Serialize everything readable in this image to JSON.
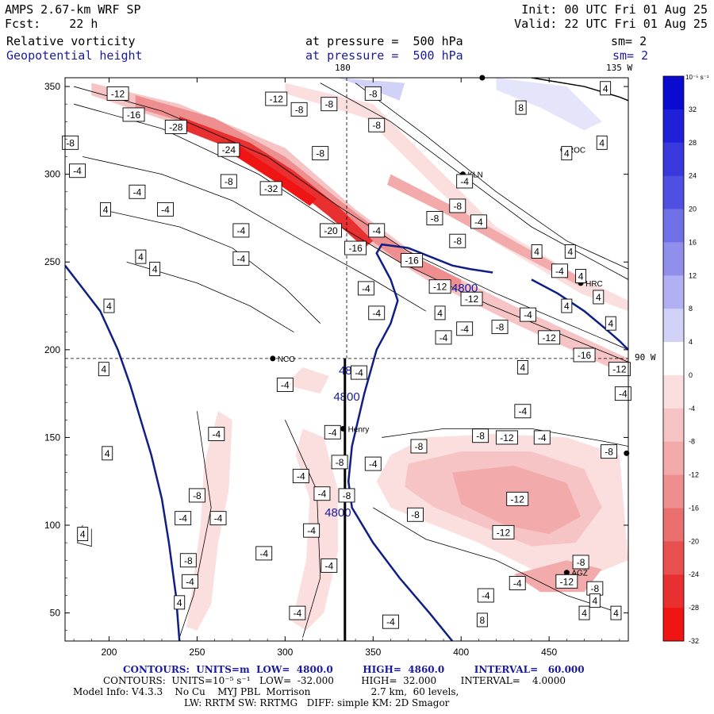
{
  "header": {
    "model": "AMPS 2.67-km WRF SP",
    "forecast": "Fcst:    22 h",
    "init": "Init: 00 UTC Fri 01 Aug 25",
    "valid": "Valid: 22 UTC Fri 01 Aug 25",
    "field1_name": "Relative vorticity",
    "field1_level": "at pressure =  500 hPa",
    "field1_sm": "sm= 2",
    "field2_name": "Geopotential height",
    "field2_level": "at pressure =  500 hPa",
    "field2_sm": "sm= 2"
  },
  "map_labels": {
    "lon_180": "180",
    "lon_135w": "135 W",
    "lon_90w": "90 W"
  },
  "stations": [
    {
      "id": "NCO",
      "x": 293,
      "y": 195
    },
    {
      "id": "Henry",
      "x": 333,
      "y": 155
    },
    {
      "id": "KLN",
      "x": 401,
      "y": 300
    },
    {
      "id": "HRC",
      "x": 468,
      "y": 238
    },
    {
      "id": "ROC",
      "x": 458,
      "y": 314
    },
    {
      "id": "AGZ",
      "x": 460,
      "y": 73
    },
    {
      "id": "",
      "x": 494,
      "y": 141
    },
    {
      "id": "",
      "x": 412,
      "y": 355
    }
  ],
  "colorbar": {
    "unit": "10^-5 s^-1",
    "ticks": [
      "32",
      "28",
      "24",
      "20",
      "16",
      "12",
      "8",
      "4",
      "0",
      "-4",
      "-8",
      "-12",
      "-16",
      "-20",
      "-24",
      "-28",
      "-32"
    ],
    "colors": [
      "#0b0bd0",
      "#2020d8",
      "#3838dc",
      "#5050e0",
      "#7070e6",
      "#9090ec",
      "#b0b0f2",
      "#d2d2f8",
      "#ffffff",
      "#fbdede",
      "#f6c4c4",
      "#f2aaaa",
      "#ee8e8e",
      "#ea7070",
      "#e85050",
      "#e83030",
      "#ef1515"
    ]
  },
  "chart_data": {
    "type": "heatmap",
    "title": "Relative vorticity / Geopotential height at 500 hPa",
    "x_ticks": [
      "200",
      "250",
      "300",
      "350",
      "400",
      "450"
    ],
    "y_ticks": [
      "50",
      "100",
      "150",
      "200",
      "250",
      "300",
      "350"
    ],
    "xlim": [
      175,
      495
    ],
    "ylim": [
      34,
      355
    ],
    "height_contours": {
      "units": "m",
      "low": "4800.0",
      "high": "4860.0",
      "interval": "60.000",
      "labels": [
        "4800",
        "4800",
        "4800",
        "4800"
      ],
      "lines": [
        [
          [
            175,
            248
          ],
          [
            185,
            235
          ],
          [
            195,
            222
          ],
          [
            205,
            200
          ],
          [
            212,
            180
          ],
          [
            218,
            160
          ],
          [
            224,
            140
          ],
          [
            230,
            115
          ],
          [
            234,
            90
          ],
          [
            238,
            60
          ],
          [
            240,
            34
          ]
        ],
        [
          [
            395,
            34
          ],
          [
            382,
            50
          ],
          [
            365,
            70
          ],
          [
            350,
            90
          ],
          [
            338,
            110
          ],
          [
            336,
            125
          ],
          [
            338,
            145
          ],
          [
            345,
            175
          ],
          [
            352,
            200
          ],
          [
            360,
            215
          ],
          [
            364,
            228
          ],
          [
            360,
            240
          ],
          [
            352,
            255
          ],
          [
            355,
            260
          ],
          [
            370,
            258
          ],
          [
            385,
            252
          ],
          [
            395,
            248
          ],
          [
            405,
            246
          ],
          [
            418,
            244
          ]
        ],
        [
          [
            440,
            240
          ],
          [
            455,
            232
          ],
          [
            470,
            222
          ],
          [
            482,
            212
          ],
          [
            490,
            205
          ],
          [
            495,
            200
          ]
        ]
      ]
    },
    "vorticity_contours": {
      "units": "10^-5 s^-1",
      "low": "-32.000",
      "high": "32.000",
      "interval": "4.0000",
      "labels": [
        {
          "v": "-12",
          "x": 205,
          "y": 346
        },
        {
          "v": "-16",
          "x": 214,
          "y": 334
        },
        {
          "v": "-28",
          "x": 238,
          "y": 327
        },
        {
          "v": "-12",
          "x": 295,
          "y": 343
        },
        {
          "v": "-8",
          "x": 308,
          "y": 337
        },
        {
          "v": "-8",
          "x": 325,
          "y": 340
        },
        {
          "v": "-8",
          "x": 350,
          "y": 346
        },
        {
          "v": "-8",
          "x": 352,
          "y": 328
        },
        {
          "v": "-8",
          "x": 178,
          "y": 318
        },
        {
          "v": "-24",
          "x": 268,
          "y": 314
        },
        {
          "v": "-8",
          "x": 320,
          "y": 312
        },
        {
          "v": "-4",
          "x": 182,
          "y": 302
        },
        {
          "v": "-4",
          "x": 216,
          "y": 290
        },
        {
          "v": "-8",
          "x": 268,
          "y": 296
        },
        {
          "v": "-32",
          "x": 292,
          "y": 292
        },
        {
          "v": "4",
          "x": 198,
          "y": 280
        },
        {
          "v": "-4",
          "x": 232,
          "y": 280
        },
        {
          "v": "-4",
          "x": 275,
          "y": 268
        },
        {
          "v": "-20",
          "x": 326,
          "y": 268
        },
        {
          "v": "-4",
          "x": 352,
          "y": 268
        },
        {
          "v": "-16",
          "x": 340,
          "y": 258
        },
        {
          "v": "-4",
          "x": 275,
          "y": 252
        },
        {
          "v": "4",
          "x": 218,
          "y": 253
        },
        {
          "v": "4",
          "x": 226,
          "y": 246
        },
        {
          "v": "-16",
          "x": 372,
          "y": 251
        },
        {
          "v": "-12",
          "x": 388,
          "y": 236
        },
        {
          "v": "-12",
          "x": 406,
          "y": 229
        },
        {
          "v": "-4",
          "x": 346,
          "y": 235
        },
        {
          "v": "4",
          "x": 200,
          "y": 225
        },
        {
          "v": "-4",
          "x": 352,
          "y": 221
        },
        {
          "v": "4",
          "x": 388,
          "y": 221
        },
        {
          "v": "-4",
          "x": 402,
          "y": 212
        },
        {
          "v": "-8",
          "x": 422,
          "y": 213
        },
        {
          "v": "-4",
          "x": 438,
          "y": 220
        },
        {
          "v": "-12",
          "x": 450,
          "y": 207
        },
        {
          "v": "-4",
          "x": 390,
          "y": 207
        },
        {
          "v": "-8",
          "x": 398,
          "y": 282
        },
        {
          "v": "-8",
          "x": 398,
          "y": 262
        },
        {
          "v": "-8",
          "x": 385,
          "y": 275
        },
        {
          "v": "-4",
          "x": 410,
          "y": 273
        },
        {
          "v": "-4",
          "x": 402,
          "y": 296
        },
        {
          "v": "-4",
          "x": 456,
          "y": 245
        },
        {
          "v": "4",
          "x": 443,
          "y": 256
        },
        {
          "v": "4",
          "x": 462,
          "y": 256
        },
        {
          "v": "4",
          "x": 468,
          "y": 242
        },
        {
          "v": "4",
          "x": 478,
          "y": 230
        },
        {
          "v": "4",
          "x": 460,
          "y": 225
        },
        {
          "v": "4",
          "x": 485,
          "y": 215
        },
        {
          "v": "-16",
          "x": 470,
          "y": 197
        },
        {
          "v": "-12",
          "x": 490,
          "y": 189
        },
        {
          "v": "4",
          "x": 435,
          "y": 190
        },
        {
          "v": "-4",
          "x": 492,
          "y": 175
        },
        {
          "v": "-4",
          "x": 435,
          "y": 165
        },
        {
          "v": "-4",
          "x": 446,
          "y": 150
        },
        {
          "v": "-8",
          "x": 411,
          "y": 151
        },
        {
          "v": "-12",
          "x": 426,
          "y": 150
        },
        {
          "v": "-8",
          "x": 484,
          "y": 142
        },
        {
          "v": "-8",
          "x": 376,
          "y": 145
        },
        {
          "v": "-4",
          "x": 342,
          "y": 187
        },
        {
          "v": "-4",
          "x": 300,
          "y": 180
        },
        {
          "v": "4",
          "x": 197,
          "y": 189
        },
        {
          "v": "-4",
          "x": 261,
          "y": 152
        },
        {
          "v": "4",
          "x": 199,
          "y": 141
        },
        {
          "v": "-4",
          "x": 350,
          "y": 135
        },
        {
          "v": "-8",
          "x": 331,
          "y": 136
        },
        {
          "v": "-4",
          "x": 327,
          "y": 153
        },
        {
          "v": "-4",
          "x": 309,
          "y": 128
        },
        {
          "v": "-8",
          "x": 335,
          "y": 117
        },
        {
          "v": "-4",
          "x": 321,
          "y": 118
        },
        {
          "v": "-8",
          "x": 250,
          "y": 117
        },
        {
          "v": "-4",
          "x": 242,
          "y": 104
        },
        {
          "v": "-4",
          "x": 262,
          "y": 104
        },
        {
          "v": "-8",
          "x": 374,
          "y": 106
        },
        {
          "v": "-12",
          "x": 432,
          "y": 115
        },
        {
          "v": "-12",
          "x": 424,
          "y": 96
        },
        {
          "v": "4",
          "x": 185,
          "y": 95
        },
        {
          "v": "-4",
          "x": 315,
          "y": 97
        },
        {
          "v": "-4",
          "x": 288,
          "y": 84
        },
        {
          "v": "-8",
          "x": 245,
          "y": 80
        },
        {
          "v": "-4",
          "x": 325,
          "y": 77
        },
        {
          "v": "-4",
          "x": 246,
          "y": 68
        },
        {
          "v": "-8",
          "x": 468,
          "y": 79
        },
        {
          "v": "-12",
          "x": 460,
          "y": 68
        },
        {
          "v": "-8",
          "x": 476,
          "y": 64
        },
        {
          "v": "-4",
          "x": 432,
          "y": 67
        },
        {
          "v": "-4",
          "x": 414,
          "y": 60
        },
        {
          "v": "4",
          "x": 476,
          "y": 57
        },
        {
          "v": "4",
          "x": 240,
          "y": 56
        },
        {
          "v": "-4",
          "x": 307,
          "y": 50
        },
        {
          "v": "4",
          "x": 470,
          "y": 50
        },
        {
          "v": "4",
          "x": 488,
          "y": 50
        },
        {
          "v": "-4",
          "x": 360,
          "y": 45
        },
        {
          "v": "8",
          "x": 412,
          "y": 46
        },
        {
          "v": "8",
          "x": 434,
          "y": 338
        },
        {
          "v": "4",
          "x": 482,
          "y": 349
        },
        {
          "v": "4",
          "x": 480,
          "y": 318
        },
        {
          "v": "4",
          "x": 460,
          "y": 312
        }
      ]
    }
  },
  "footer": {
    "line1": "CONTOURS:  UNITS=m  LOW=  4800.0         HIGH=  4860.0         INTERVAL=   60.000",
    "line2": "CONTOURS:  UNITS=10⁻⁵ s⁻¹   LOW=  -32.000         HIGH=  32.000        INTERVAL=    4.0000",
    "line3": "Model Info: V4.3.3    No Cu    MYJ PBL  Morrison                    2.7 km,  60 levels,",
    "line4": "LW: RRTM SW: RRTMG   DIFF: simple KM: 2D Smagor"
  },
  "colors": {
    "height_line": "#0f1f86",
    "label_blue": "#1a1aa0"
  }
}
